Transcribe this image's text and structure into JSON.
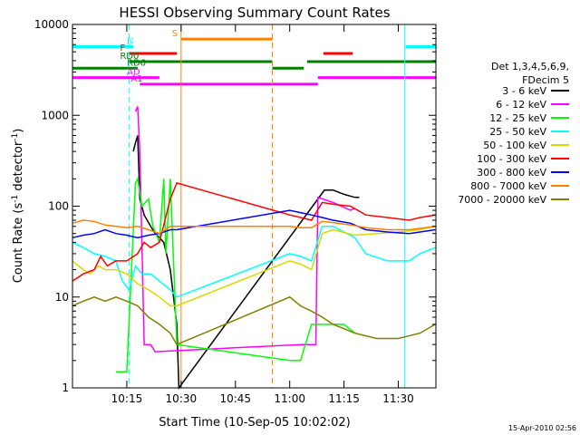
{
  "chart_data": {
    "type": "line",
    "title": "HESSI Observing Summary Count Rates",
    "xlabel": "Start Time (10-Sep-05 10:02:02)",
    "ylabel_main": "Count Rate (s",
    "ylabel_sup1": "-1",
    "ylabel_mid": " detector",
    "ylabel_sup2": "-1",
    "ylabel_end": ")",
    "yscale": "log",
    "xlim": [
      10.0,
      11.673
    ],
    "ylim": [
      1,
      10000
    ],
    "xticks": [
      {
        "value": 10.25,
        "label": "10:15"
      },
      {
        "value": 10.5,
        "label": "10:30"
      },
      {
        "value": 10.75,
        "label": "10:45"
      },
      {
        "value": 11.0,
        "label": "11:00"
      },
      {
        "value": 11.25,
        "label": "11:15"
      },
      {
        "value": 11.5,
        "label": "11:30"
      }
    ],
    "yticks": [
      {
        "value": 1,
        "label": "1"
      },
      {
        "value": 10,
        "label": "10"
      },
      {
        "value": 100,
        "label": "100"
      },
      {
        "value": 1000,
        "label": "1000"
      },
      {
        "value": 10000,
        "label": "10000"
      }
    ],
    "legend": {
      "header": [
        "Det 1,3,4,5,6,9,",
        "FDecim 5"
      ],
      "placement": "right",
      "entries": [
        {
          "label": "3 - 6 keV",
          "color": "#000000"
        },
        {
          "label": "6 - 12 keV",
          "color": "#ff00ff"
        },
        {
          "label": "12 - 25 keV",
          "color": "#00ff00"
        },
        {
          "label": "25 - 50 keV",
          "color": "#00ffff"
        },
        {
          "label": "50 - 100 keV",
          "color": "#d8d800"
        },
        {
          "label": "100 - 300 keV",
          "color": "#ff0000"
        },
        {
          "label": "300 - 800 keV",
          "color": "#0000ff"
        },
        {
          "label": "800 - 7000 keV",
          "color": "#ff8000"
        },
        {
          "label": "7000 - 20000 keV",
          "color": "#808000"
        }
      ]
    },
    "flag_bars": [
      {
        "label": "N",
        "color": "#00ffff",
        "y": 5700,
        "segments": [
          [
            10.0,
            10.28
          ],
          [
            11.535,
            11.673
          ]
        ]
      },
      {
        "label": "F",
        "color": "#ff0000",
        "y": 4800,
        "segments": [
          [
            10.26,
            10.48
          ],
          [
            11.155,
            11.29
          ]
        ]
      },
      {
        "label": "S",
        "color": "#ff8000",
        "y": 6900,
        "segments": [
          [
            10.5,
            10.92
          ]
        ]
      },
      {
        "label": "RD0",
        "color": "#008000",
        "y": 3900,
        "segments": [
          [
            10.26,
            10.92
          ],
          [
            11.08,
            11.673
          ]
        ]
      },
      {
        "label": "RD6",
        "color": "#008000",
        "y": 3300,
        "segments": [
          [
            10.0,
            10.3
          ],
          [
            10.92,
            11.065
          ]
        ]
      },
      {
        "label": "AD",
        "color": "#ff00ff",
        "y": 2600,
        "segments": [
          [
            10.0,
            10.4
          ],
          [
            11.13,
            11.673
          ]
        ]
      },
      {
        "label": "A1",
        "color": "#ff00ff",
        "y": 2200,
        "segments": [
          [
            10.31,
            11.13
          ]
        ]
      }
    ],
    "vlines": [
      {
        "x": 10.0,
        "color": "#00ffff",
        "style": "solid"
      },
      {
        "x": 10.26,
        "color": "#00ffff",
        "style": "dashed"
      },
      {
        "x": 10.5,
        "color": "#ff8000",
        "style": "solid"
      },
      {
        "x": 10.92,
        "color": "#ff8000",
        "style": "dashed"
      },
      {
        "x": 11.53,
        "color": "#00ffff",
        "style": "solid"
      },
      {
        "x": 11.673,
        "color": "#00ffff",
        "style": "dashed"
      }
    ],
    "series": [
      {
        "name": "3 - 6 keV",
        "color": "#000000",
        "points": [
          [
            10.28,
            400
          ],
          [
            10.29,
            500
          ],
          [
            10.3,
            600
          ],
          [
            10.31,
            120
          ],
          [
            10.33,
            80
          ],
          [
            10.36,
            60
          ],
          [
            10.38,
            50
          ],
          [
            10.4,
            45
          ],
          [
            10.42,
            40
          ],
          [
            10.45,
            20
          ],
          [
            10.48,
            5
          ],
          [
            10.49,
            1
          ],
          [
            11.16,
            150
          ],
          [
            11.2,
            150
          ],
          [
            11.25,
            135
          ],
          [
            11.3,
            125
          ],
          [
            11.32,
            125
          ]
        ]
      },
      {
        "name": "6 - 12 keV",
        "color": "#ff00ff",
        "points": [
          [
            10.29,
            1100
          ],
          [
            10.3,
            1250
          ],
          [
            10.31,
            400
          ],
          [
            10.33,
            3
          ],
          [
            10.36,
            3
          ],
          [
            10.38,
            2.5
          ],
          [
            11.05,
            3
          ],
          [
            11.12,
            3
          ],
          [
            11.13,
            125
          ],
          [
            11.2,
            110
          ],
          [
            11.28,
            90
          ],
          [
            11.3,
            95
          ]
        ]
      },
      {
        "name": "12 - 25 keV",
        "color": "#00ff00",
        "points": [
          [
            10.2,
            1.5
          ],
          [
            10.25,
            1.5
          ],
          [
            10.29,
            180
          ],
          [
            10.3,
            200
          ],
          [
            10.32,
            100
          ],
          [
            10.35,
            120
          ],
          [
            10.37,
            60
          ],
          [
            10.4,
            40
          ],
          [
            10.42,
            200
          ],
          [
            10.43,
            30
          ],
          [
            10.45,
            200
          ],
          [
            10.48,
            3
          ],
          [
            11.0,
            2
          ],
          [
            11.05,
            2
          ],
          [
            11.1,
            5
          ],
          [
            11.15,
            5
          ],
          [
            11.25,
            5
          ],
          [
            11.3,
            4
          ]
        ]
      },
      {
        "name": "25 - 50 keV",
        "color": "#00ffff",
        "points": [
          [
            10.0,
            40
          ],
          [
            10.05,
            35
          ],
          [
            10.1,
            30
          ],
          [
            10.15,
            28
          ],
          [
            10.2,
            25
          ],
          [
            10.23,
            15
          ],
          [
            10.26,
            12
          ],
          [
            10.29,
            22
          ],
          [
            10.32,
            18
          ],
          [
            10.36,
            18
          ],
          [
            10.4,
            15
          ],
          [
            10.45,
            12
          ],
          [
            10.48,
            10
          ],
          [
            11.0,
            30
          ],
          [
            11.05,
            28
          ],
          [
            11.1,
            25
          ],
          [
            11.15,
            60
          ],
          [
            11.2,
            60
          ],
          [
            11.3,
            45
          ],
          [
            11.35,
            30
          ],
          [
            11.45,
            25
          ],
          [
            11.55,
            25
          ],
          [
            11.6,
            30
          ],
          [
            11.67,
            35
          ]
        ]
      },
      {
        "name": "50 - 100 keV",
        "color": "#d8d800",
        "points": [
          [
            10.0,
            25
          ],
          [
            10.05,
            20
          ],
          [
            10.08,
            18
          ],
          [
            10.12,
            22
          ],
          [
            10.15,
            20
          ],
          [
            10.2,
            20
          ],
          [
            10.25,
            18
          ],
          [
            10.3,
            14
          ],
          [
            10.35,
            12
          ],
          [
            10.4,
            10
          ],
          [
            10.45,
            8
          ],
          [
            10.48,
            8
          ],
          [
            11.0,
            25
          ],
          [
            11.05,
            23
          ],
          [
            11.1,
            20
          ],
          [
            11.15,
            50
          ],
          [
            11.2,
            55
          ],
          [
            11.3,
            48
          ],
          [
            11.4,
            50
          ],
          [
            11.5,
            52
          ],
          [
            11.6,
            55
          ],
          [
            11.67,
            60
          ]
        ]
      },
      {
        "name": "100 - 300 keV",
        "color": "#ff0000",
        "points": [
          [
            10.0,
            15
          ],
          [
            10.05,
            18
          ],
          [
            10.1,
            20
          ],
          [
            10.13,
            28
          ],
          [
            10.16,
            22
          ],
          [
            10.2,
            25
          ],
          [
            10.25,
            25
          ],
          [
            10.3,
            30
          ],
          [
            10.33,
            40
          ],
          [
            10.36,
            35
          ],
          [
            10.4,
            40
          ],
          [
            10.45,
            120
          ],
          [
            10.48,
            180
          ],
          [
            11.0,
            80
          ],
          [
            11.05,
            75
          ],
          [
            11.1,
            70
          ],
          [
            11.15,
            110
          ],
          [
            11.2,
            105
          ],
          [
            11.28,
            100
          ],
          [
            11.35,
            80
          ],
          [
            11.45,
            75
          ],
          [
            11.55,
            70
          ],
          [
            11.6,
            75
          ],
          [
            11.67,
            80
          ]
        ]
      },
      {
        "name": "300 - 800 keV",
        "color": "#0000ff",
        "points": [
          [
            10.0,
            45
          ],
          [
            10.05,
            48
          ],
          [
            10.1,
            50
          ],
          [
            10.15,
            55
          ],
          [
            10.2,
            50
          ],
          [
            10.25,
            48
          ],
          [
            10.3,
            45
          ],
          [
            10.35,
            48
          ],
          [
            10.4,
            50
          ],
          [
            10.45,
            55
          ],
          [
            10.48,
            55
          ],
          [
            11.0,
            90
          ],
          [
            11.05,
            85
          ],
          [
            11.1,
            80
          ],
          [
            11.15,
            75
          ],
          [
            11.2,
            70
          ],
          [
            11.28,
            65
          ],
          [
            11.35,
            55
          ],
          [
            11.45,
            52
          ],
          [
            11.55,
            50
          ],
          [
            11.6,
            52
          ],
          [
            11.67,
            55
          ]
        ]
      },
      {
        "name": "800 - 7000 keV",
        "color": "#ff8000",
        "points": [
          [
            10.0,
            65
          ],
          [
            10.05,
            70
          ],
          [
            10.1,
            68
          ],
          [
            10.15,
            62
          ],
          [
            10.2,
            60
          ],
          [
            10.25,
            58
          ],
          [
            10.3,
            60
          ],
          [
            10.35,
            55
          ],
          [
            10.4,
            50
          ],
          [
            10.45,
            60
          ],
          [
            10.48,
            60
          ],
          [
            11.0,
            60
          ],
          [
            11.05,
            58
          ],
          [
            11.1,
            58
          ],
          [
            11.15,
            68
          ],
          [
            11.2,
            66
          ],
          [
            11.28,
            62
          ],
          [
            11.35,
            58
          ],
          [
            11.45,
            55
          ],
          [
            11.55,
            55
          ],
          [
            11.6,
            57
          ],
          [
            11.67,
            60
          ]
        ]
      },
      {
        "name": "7000 - 20000 keV",
        "color": "#808000",
        "points": [
          [
            10.0,
            8
          ],
          [
            10.05,
            9
          ],
          [
            10.1,
            10
          ],
          [
            10.15,
            9
          ],
          [
            10.2,
            10
          ],
          [
            10.25,
            9
          ],
          [
            10.3,
            8
          ],
          [
            10.35,
            6
          ],
          [
            10.4,
            5
          ],
          [
            10.45,
            4
          ],
          [
            10.48,
            3
          ],
          [
            11.0,
            10
          ],
          [
            11.05,
            8
          ],
          [
            11.1,
            7
          ],
          [
            11.15,
            6
          ],
          [
            11.2,
            5
          ],
          [
            11.3,
            4
          ],
          [
            11.4,
            3.5
          ],
          [
            11.5,
            3.5
          ],
          [
            11.6,
            4
          ],
          [
            11.67,
            5
          ]
        ]
      }
    ],
    "grid": false
  },
  "footer": {
    "timestamp": "15-Apr-2010 02:56"
  }
}
